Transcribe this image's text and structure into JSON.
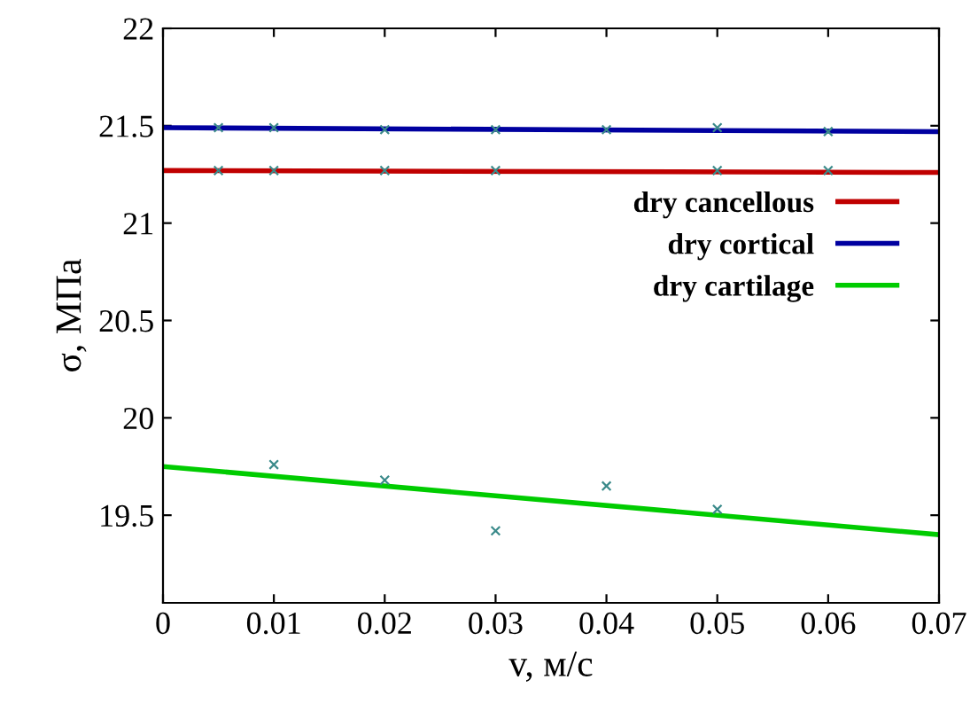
{
  "chart_data": {
    "type": "line",
    "xlabel": "v, м/с",
    "ylabel": "σ, МПа",
    "xlim": [
      0,
      0.07
    ],
    "xticks": [
      0,
      0.01,
      0.02,
      0.03,
      0.04,
      0.05,
      0.06,
      0.07
    ],
    "ylim": [
      19.05,
      22
    ],
    "yticks": [
      19.5,
      20,
      20.5,
      21,
      21.5,
      22
    ],
    "grid": false,
    "legend": "right",
    "line_style": "solid",
    "series": [
      {
        "name": "dry cancellous",
        "color": "#c00000",
        "x": [
          0,
          0.07
        ],
        "values": [
          21.27,
          21.26
        ]
      },
      {
        "name": "dry cortical",
        "color": "#0000a0",
        "x": [
          0,
          0.07
        ],
        "values": [
          21.49,
          21.47
        ]
      },
      {
        "name": "dry cartilage",
        "color": "#00cc00",
        "x": [
          0,
          0.07
        ],
        "values": [
          19.75,
          19.4
        ]
      },
      {
        "type": "scatter",
        "marker": "cross",
        "color": "#3a8a8a",
        "x": [
          0.005,
          0.01,
          0.02,
          0.03,
          0.05,
          0.06
        ],
        "values": [
          21.27,
          21.27,
          21.27,
          21.27,
          21.27,
          21.27
        ]
      },
      {
        "type": "scatter",
        "marker": "cross",
        "color": "#3a8a8a",
        "x": [
          0.005,
          0.01,
          0.02,
          0.03,
          0.04,
          0.05,
          0.06
        ],
        "values": [
          21.49,
          21.49,
          21.48,
          21.48,
          21.48,
          21.49,
          21.47
        ]
      },
      {
        "type": "scatter",
        "marker": "cross",
        "color": "#3a8a8a",
        "x": [
          0.01,
          0.02,
          0.03,
          0.04,
          0.05
        ],
        "values": [
          19.76,
          19.68,
          19.42,
          19.65,
          19.53
        ]
      }
    ]
  }
}
